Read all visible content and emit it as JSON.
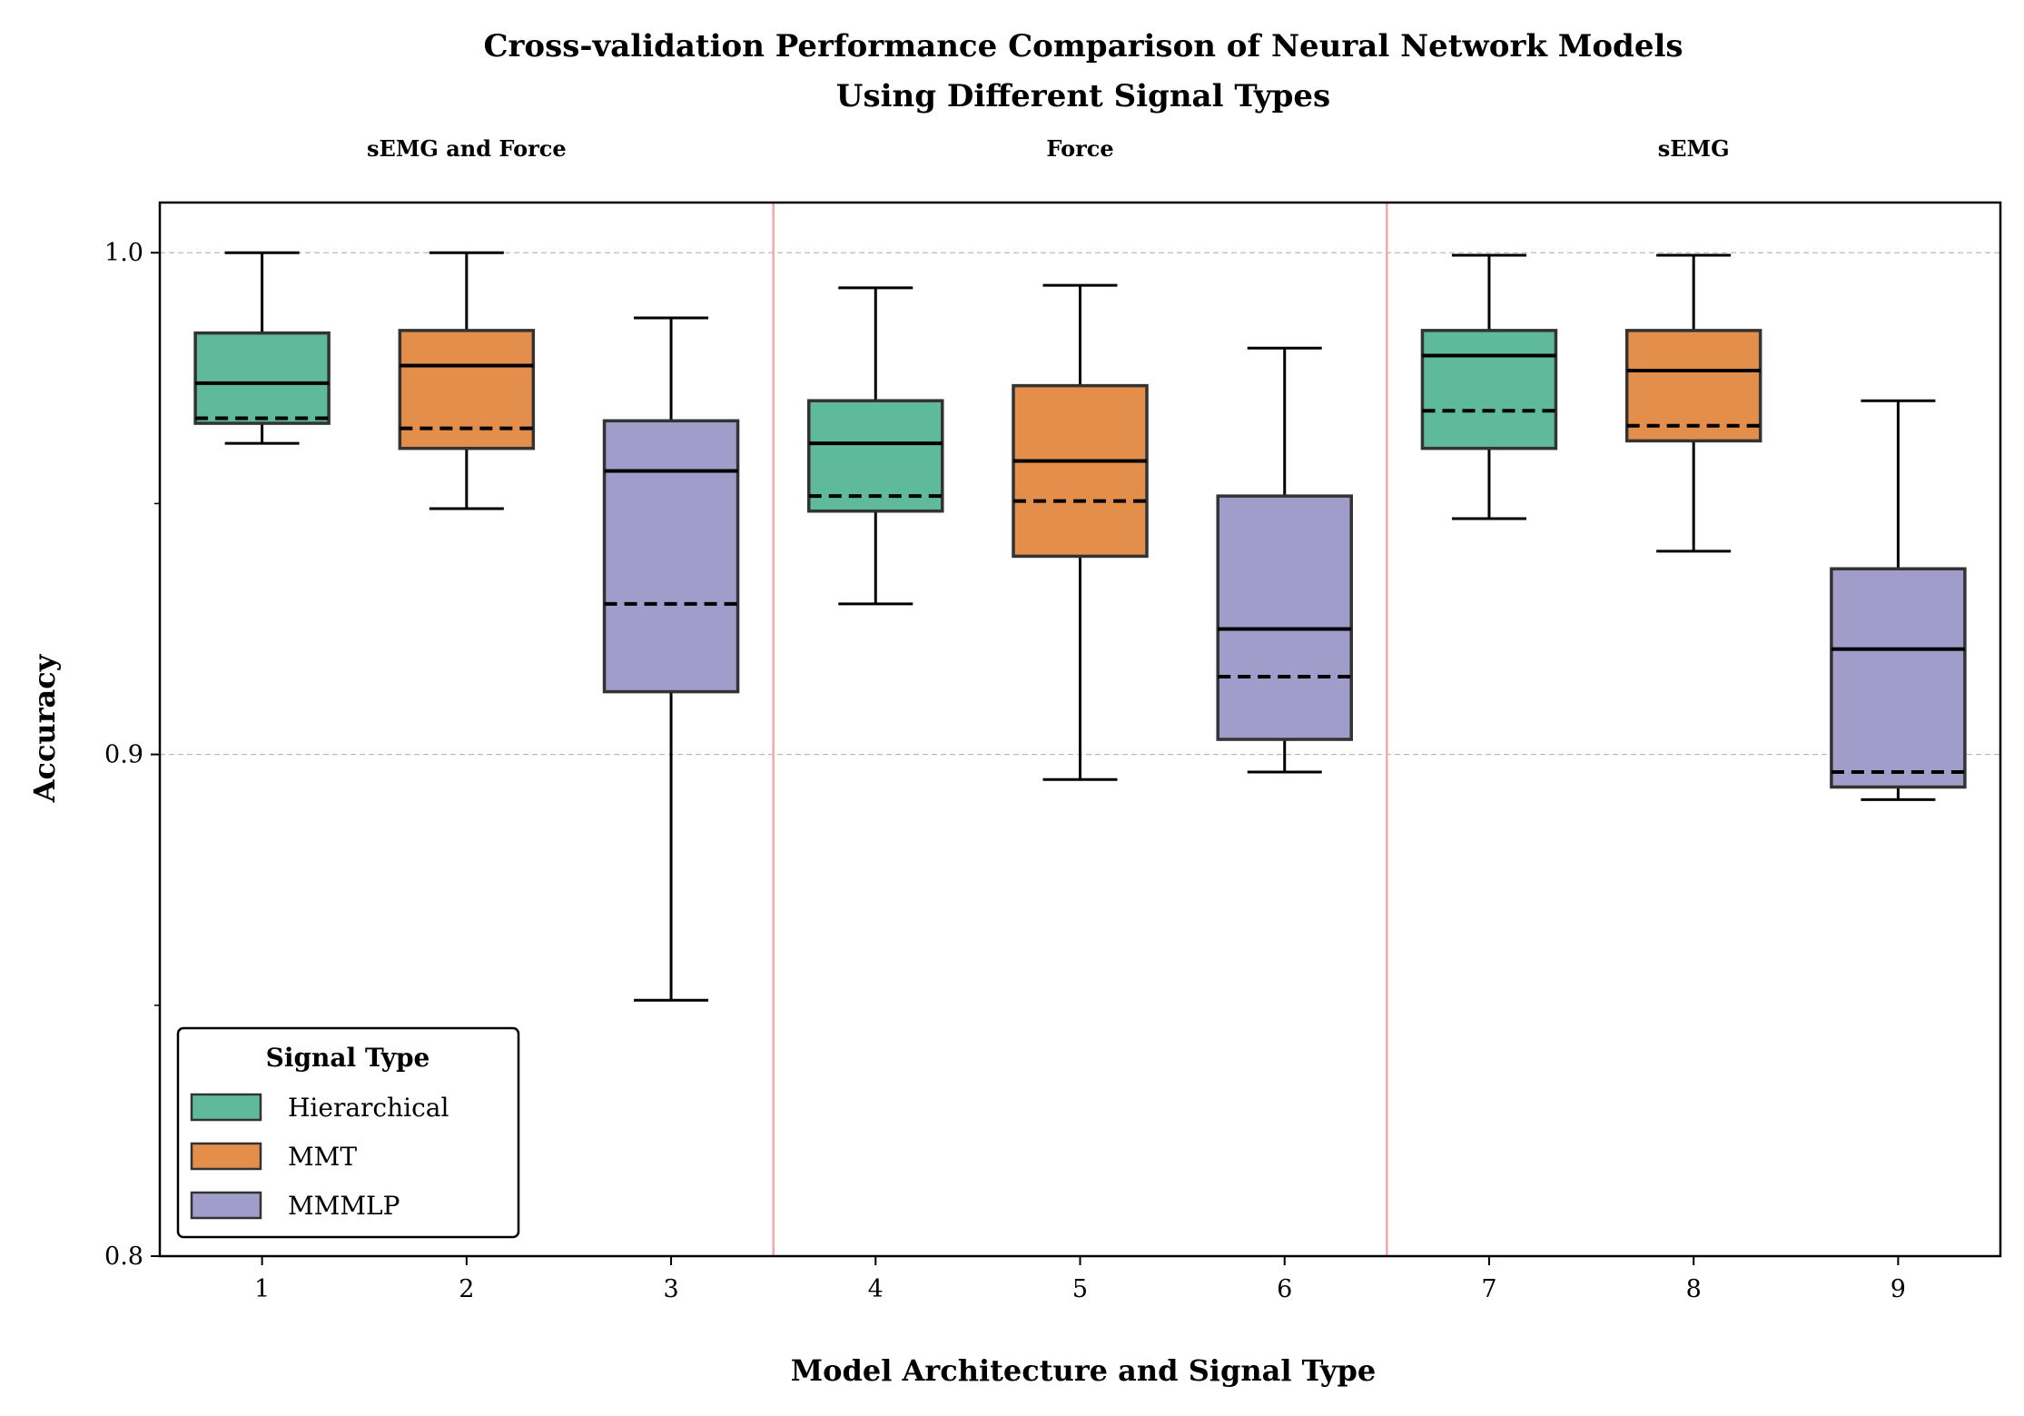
{
  "chart_data": {
    "type": "box",
    "title_line1": "Cross-validation Performance Comparison of Neural Network Models",
    "title_line2": "Using Different Signal Types",
    "xlabel": "Model Architecture and Signal Type",
    "ylabel": "Accuracy",
    "ylim": [
      0.8,
      1.01
    ],
    "yticks": [
      {
        "value": 0.8,
        "label": "0.8"
      },
      {
        "value": 0.9,
        "label": "0.9"
      },
      {
        "value": 1.0,
        "label": "1.0"
      }
    ],
    "yminor_ticks": [
      0.85,
      0.95
    ],
    "grid": "horizontal dashed at major ticks",
    "group_labels": [
      {
        "label": "sEMG and Force",
        "center": 2
      },
      {
        "label": "Force",
        "center": 5
      },
      {
        "label": "sEMG",
        "center": 8
      }
    ],
    "group_separators": [
      3.5,
      6.5
    ],
    "median_style": "solid",
    "mean_style": "dashed",
    "legend": {
      "title": "Signal Type",
      "position": "lower-left",
      "entries": [
        {
          "label": "Hierarchical",
          "color": "#5fba9c"
        },
        {
          "label": "MMT",
          "color": "#e48e4c"
        },
        {
          "label": "MMMLP",
          "color": "#a09dcb"
        }
      ]
    },
    "boxes": [
      {
        "x": 1,
        "label": "1",
        "series": 0,
        "whislo": 0.962,
        "q1": 0.966,
        "med": 0.974,
        "mean": 0.967,
        "q3": 0.984,
        "whishi": 1.0
      },
      {
        "x": 2,
        "label": "2",
        "series": 1,
        "whislo": 0.949,
        "q1": 0.961,
        "med": 0.9775,
        "mean": 0.965,
        "q3": 0.9845,
        "whishi": 1.0
      },
      {
        "x": 3,
        "label": "3",
        "series": 2,
        "whislo": 0.851,
        "q1": 0.9125,
        "med": 0.9565,
        "mean": 0.93,
        "q3": 0.9665,
        "whishi": 0.987
      },
      {
        "x": 4,
        "label": "4",
        "series": 0,
        "whislo": 0.93,
        "q1": 0.9485,
        "med": 0.962,
        "mean": 0.9515,
        "q3": 0.9705,
        "whishi": 0.993
      },
      {
        "x": 5,
        "label": "5",
        "series": 1,
        "whislo": 0.895,
        "q1": 0.9395,
        "med": 0.9585,
        "mean": 0.9505,
        "q3": 0.9735,
        "whishi": 0.9935
      },
      {
        "x": 6,
        "label": "6",
        "series": 2,
        "whislo": 0.8965,
        "q1": 0.903,
        "med": 0.925,
        "mean": 0.9155,
        "q3": 0.9515,
        "whishi": 0.981
      },
      {
        "x": 7,
        "label": "7",
        "series": 0,
        "whislo": 0.947,
        "q1": 0.961,
        "med": 0.9795,
        "mean": 0.9685,
        "q3": 0.9845,
        "whishi": 0.9995
      },
      {
        "x": 8,
        "label": "8",
        "series": 1,
        "whislo": 0.9405,
        "q1": 0.9625,
        "med": 0.9765,
        "mean": 0.9655,
        "q3": 0.9845,
        "whishi": 0.9995
      },
      {
        "x": 9,
        "label": "9",
        "series": 2,
        "whislo": 0.891,
        "q1": 0.8935,
        "med": 0.921,
        "mean": 0.8965,
        "q3": 0.937,
        "whishi": 0.9705
      }
    ],
    "colors": {
      "box_edge": "#333333",
      "separator": "#f4a7a7",
      "grid": "#bbbbbb"
    }
  }
}
